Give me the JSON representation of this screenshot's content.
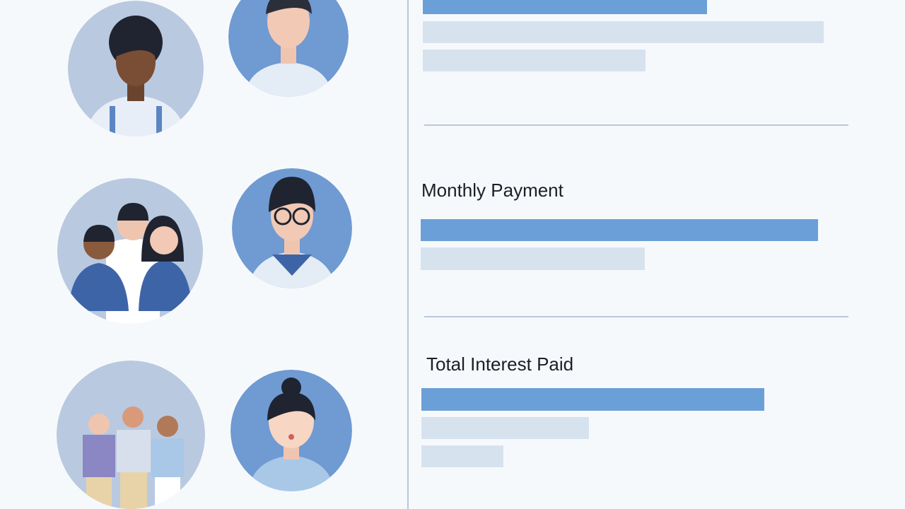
{
  "sections": [
    {
      "label": "Monthly Payment"
    },
    {
      "label": "Total Interest Paid"
    }
  ]
}
